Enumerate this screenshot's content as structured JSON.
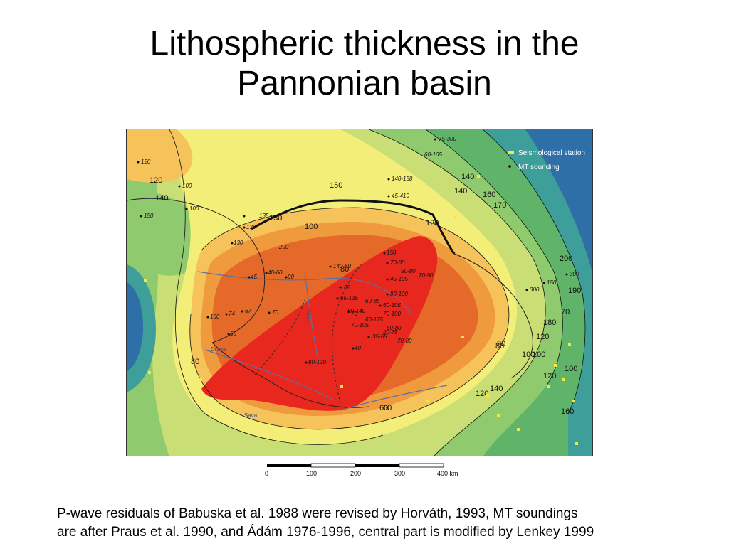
{
  "slide": {
    "title_line1": "Lithospheric thickness in the",
    "title_line2": "Pannonian basin",
    "caption_line1": "P-wave residuals of Babuska et al. 1988 were revised by Horváth, 1993, MT soundings",
    "caption_line2": "are after Praus et al. 1990, and Ádám 1976-1996, central part is modified by Lenkey 1999"
  },
  "map": {
    "legend": {
      "station_label": "Seismological station",
      "mt_label": "MT sounding",
      "station_color": "#f4e842",
      "mt_color": "#000000"
    },
    "contour_labels": [
      "120",
      "140",
      "100",
      "150",
      "130",
      "120",
      "100",
      "80",
      "60",
      "80",
      "100",
      "120",
      "140",
      "160",
      "170",
      "180",
      "190",
      "200",
      "140",
      "120",
      "100",
      "80",
      "60",
      "70",
      "80",
      "100",
      "120",
      "140",
      "160"
    ],
    "point_labels": [
      "75-300",
      "60-165",
      "140-158",
      "45-419",
      "100",
      "100",
      "150",
      "120",
      "135",
      "130",
      "130",
      "200",
      "40-60",
      "90",
      "45",
      "70",
      "67",
      "74",
      "160",
      "60",
      "70-80",
      "50-80",
      "45-105",
      "70-90",
      "65-135",
      "65",
      "60-85",
      "80-100",
      "60-105",
      "80-140",
      "70",
      "70-100",
      "60-175",
      "70-105",
      "35-65",
      "40-75",
      "40",
      "80-120",
      "70-80",
      "60-80",
      "140-60",
      "150",
      "300",
      "300",
      "150"
    ],
    "river_labels": [
      "Drava",
      "Sava",
      "Duna"
    ],
    "colors": {
      "blue": "#2e6fa7",
      "teal": "#3d9e9a",
      "green_dark": "#5fb46a",
      "green": "#8fca6e",
      "yellow_green": "#c9de74",
      "yellow": "#f3ee78",
      "light_orange": "#f6c25a",
      "orange": "#f09a3e",
      "dark_orange": "#e56a2a",
      "red": "#e8281e"
    }
  },
  "scale": {
    "ticks": [
      "0",
      "100",
      "200",
      "300",
      "400 km"
    ]
  }
}
